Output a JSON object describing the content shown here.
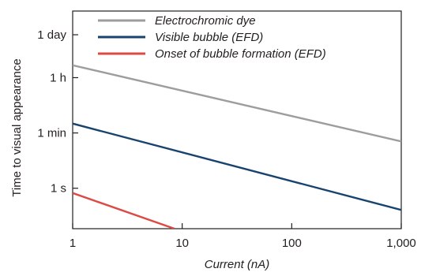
{
  "chart_data": {
    "type": "line",
    "xlabel": "Current (nA)",
    "ylabel": "Time to visual appearance",
    "x_scale": "log",
    "y_scale": "log",
    "xlim": [
      1,
      1000
    ],
    "ylim_seconds": [
      0.05,
      500000
    ],
    "x_ticks": [
      {
        "value": 1,
        "label": "1"
      },
      {
        "value": 10,
        "label": "10"
      },
      {
        "value": 100,
        "label": "100"
      },
      {
        "value": 1000,
        "label": "1,000"
      }
    ],
    "y_ticks": [
      {
        "value": 1,
        "label": "1 s"
      },
      {
        "value": 60,
        "label": "1 min"
      },
      {
        "value": 3600,
        "label": "1 h"
      },
      {
        "value": 86400,
        "label": "1 day"
      }
    ],
    "grid": false,
    "legend_position": "top-left",
    "series": [
      {
        "name": "Electrochromic dye",
        "color": "#9d9d9c",
        "x": [
          1,
          1000
        ],
        "y": [
          9000,
          32
        ]
      },
      {
        "name": "Visible bubble (EFD)",
        "color": "#17436e",
        "x": [
          1,
          1000
        ],
        "y": [
          120,
          0.2
        ]
      },
      {
        "name": "Onset of bubble formation (EFD)",
        "color": "#dc4a45",
        "x": [
          1,
          8.5
        ],
        "y": [
          0.7,
          0.05
        ]
      }
    ]
  }
}
